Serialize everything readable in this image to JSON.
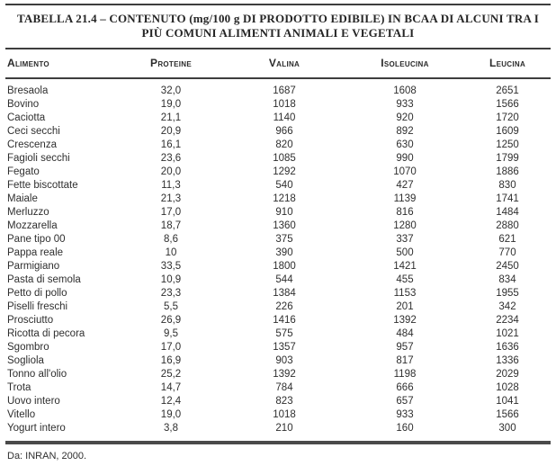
{
  "title": {
    "line1": "TABELLA 21.4 – CONTENUTO (mg/100 g DI PRODOTTO EDIBILE) IN BCAA DI ALCUNI TRA I",
    "line2": "PIÙ COMUNI ALIMENTI ANIMALI E VEGETALI"
  },
  "table": {
    "columns": [
      "Alimento",
      "Proteine",
      "Valina",
      "Isoleucina",
      "Leucina"
    ],
    "rows": [
      [
        "Bresaola",
        "32,0",
        "1687",
        "1608",
        "2651"
      ],
      [
        "Bovino",
        "19,0",
        "1018",
        "933",
        "1566"
      ],
      [
        "Caciotta",
        "21,1",
        "1140",
        "920",
        "1720"
      ],
      [
        "Ceci secchi",
        "20,9",
        "966",
        "892",
        "1609"
      ],
      [
        "Crescenza",
        "16,1",
        "820",
        "630",
        "1250"
      ],
      [
        "Fagioli secchi",
        "23,6",
        "1085",
        "990",
        "1799"
      ],
      [
        "Fegato",
        "20,0",
        "1292",
        "1070",
        "1886"
      ],
      [
        "Fette biscottate",
        "11,3",
        "540",
        "427",
        "830"
      ],
      [
        "Maiale",
        "21,3",
        "1218",
        "1139",
        "1741"
      ],
      [
        "Merluzzo",
        "17,0",
        "910",
        "816",
        "1484"
      ],
      [
        "Mozzarella",
        "18,7",
        "1360",
        "1280",
        "2880"
      ],
      [
        "Pane tipo 00",
        "8,6",
        "375",
        "337",
        "621"
      ],
      [
        "Pappa reale",
        "10",
        "390",
        "500",
        "770"
      ],
      [
        "Parmigiano",
        "33,5",
        "1800",
        "1421",
        "2450"
      ],
      [
        "Pasta di semola",
        "10,9",
        "544",
        "455",
        "834"
      ],
      [
        "Petto di pollo",
        "23,3",
        "1384",
        "1153",
        "1955"
      ],
      [
        "Piselli freschi",
        "5,5",
        "226",
        "201",
        "342"
      ],
      [
        "Prosciutto",
        "26,9",
        "1416",
        "1392",
        "2234"
      ],
      [
        "Ricotta di pecora",
        "9,5",
        "575",
        "484",
        "1021"
      ],
      [
        "Sgombro",
        "17,0",
        "1357",
        "957",
        "1636"
      ],
      [
        "Sogliola",
        "16,9",
        "903",
        "817",
        "1336"
      ],
      [
        "Tonno all'olio",
        "25,2",
        "1392",
        "1198",
        "2029"
      ],
      [
        "Trota",
        "14,7",
        "784",
        "666",
        "1028"
      ],
      [
        "Uovo intero",
        "12,4",
        "823",
        "657",
        "1041"
      ],
      [
        "Vitello",
        "19,0",
        "1018",
        "933",
        "1566"
      ],
      [
        "Yogurt intero",
        "3,8",
        "210",
        "160",
        "300"
      ]
    ]
  },
  "footnote": "Da: INRAN, 2000.",
  "colors": {
    "background": "#ffffff",
    "text": "#2f2f2f",
    "rule": "#3e3e3e",
    "rule_heavy": "#4a4a4a"
  }
}
